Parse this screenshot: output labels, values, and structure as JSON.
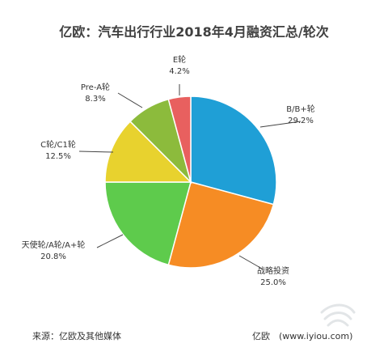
{
  "chart_data": {
    "type": "pie",
    "title": "亿欧：汽车出行行业2018年4月融资汇总/轮次",
    "slices": [
      {
        "label": "B/B+轮",
        "value": 29.2,
        "pct_text": "29.2%",
        "color": "#1f9fd6"
      },
      {
        "label": "战略投资",
        "value": 25.0,
        "pct_text": "25.0%",
        "color": "#f68c24"
      },
      {
        "label": "天使轮/A轮/A+轮",
        "value": 20.8,
        "pct_text": "20.8%",
        "color": "#5ecb4c"
      },
      {
        "label": "C轮/C1轮",
        "value": 12.5,
        "pct_text": "12.5%",
        "color": "#e8d22e"
      },
      {
        "label": "Pre-A轮",
        "value": 8.3,
        "pct_text": "8.3%",
        "color": "#8cbb3c"
      },
      {
        "label": "E轮",
        "value": 4.2,
        "pct_text": "4.2%",
        "color": "#e8605f"
      }
    ]
  },
  "footer": {
    "source": "来源：亿欧及其他媒体",
    "site": "亿欧　(www.iyiou.com)"
  }
}
